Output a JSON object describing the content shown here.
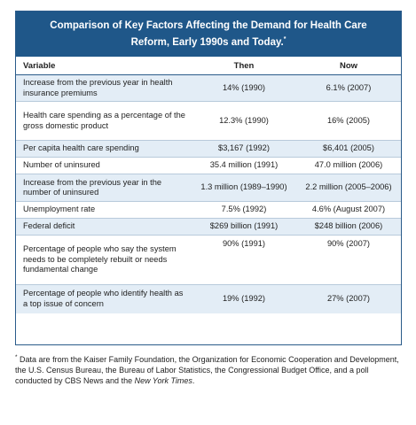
{
  "title": "Comparison of Key Factors Affecting the Demand for Health Care Reform, Early 1990s and Today.",
  "title_marker": "*",
  "columns": {
    "variable": "Variable",
    "then": "Then",
    "now": "Now"
  },
  "rows": [
    {
      "variable": "Increase from the previous year in health insurance premiums",
      "then": "14% (1990)",
      "now": "6.1% (2007)"
    },
    {
      "variable": "Health care spending as a percentage of the gross domestic product",
      "then": "12.3% (1990)",
      "now": "16% (2005)"
    },
    {
      "variable": "Per capita health care spending",
      "then": "$3,167 (1992)",
      "now": "$6,401 (2005)"
    },
    {
      "variable": "Number of uninsured",
      "then": "35.4 million (1991)",
      "now": "47.0 million (2006)"
    },
    {
      "variable": "Increase from the previous year in the number of uninsured",
      "then": "1.3 million (1989–1990)",
      "now": "2.2 million (2005–2006)"
    },
    {
      "variable": "Unemployment rate",
      "then": "7.5% (1992)",
      "now": "4.6% (August 2007)"
    },
    {
      "variable": "Federal deficit",
      "then": "$269 billion (1991)",
      "now": "$248 billion (2006)"
    },
    {
      "variable": "Percentage of people who say the system needs to be completely rebuilt or needs fundamental change",
      "then": "90% (1991)",
      "now": "90% (2007)"
    },
    {
      "variable": "Percentage of people who identify health as a top issue of concern",
      "then": "19% (1992)",
      "now": "27% (2007)"
    }
  ],
  "footnote": {
    "marker": "*",
    "text": "Data are from the Kaiser Family Foundation, the Organization for Economic Cooperation and Development, the U.S. Census Bureau, the Bureau of Labor Statistics, the Congressional Budget Office, and a poll conducted by CBS News and the",
    "italic": "New York Times",
    "end": "."
  },
  "colors": {
    "header_bg": "#1f5789",
    "alt_row_bg": "#e3edf6",
    "border": "#2a5b8a"
  }
}
